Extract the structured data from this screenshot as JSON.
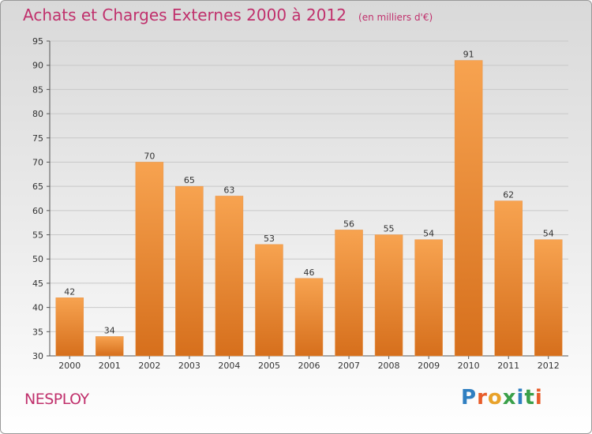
{
  "header": {
    "title": "Achats et Charges Externes 2000 à 2012",
    "subtitle": "(en milliers d'€)"
  },
  "footer": {
    "commune": "NESPLOY",
    "brand": "Proxiti",
    "brand_colors": [
      "#2f7fc1",
      "#e85c2a",
      "#e8a22a",
      "#3aa04a",
      "#2f7fc1",
      "#3aa04a",
      "#e85c2a"
    ]
  },
  "colors": {
    "bar_top": "#f7a350",
    "bar_bottom": "#d66f1c",
    "grid": "#c8c8c8",
    "title": "#c0306c"
  },
  "chart_data": {
    "type": "bar",
    "categories": [
      "2000",
      "2001",
      "2002",
      "2003",
      "2004",
      "2005",
      "2006",
      "2007",
      "2008",
      "2009",
      "2010",
      "2011",
      "2012"
    ],
    "values": [
      42,
      34,
      70,
      65,
      63,
      53,
      46,
      56,
      55,
      54,
      91,
      62,
      54
    ],
    "ylim": [
      30,
      95
    ],
    "yticks": [
      30,
      35,
      40,
      45,
      50,
      55,
      60,
      65,
      70,
      75,
      80,
      85,
      90,
      95
    ],
    "grid": true,
    "data_labels": true
  }
}
